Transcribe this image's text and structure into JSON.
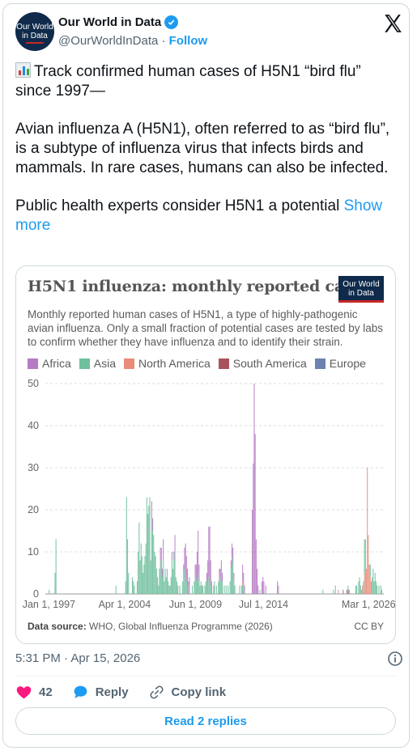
{
  "author": {
    "name": "Our World in Data",
    "handle": "@OurWorldInData",
    "separator": "·",
    "follow_label": "Follow",
    "avatar_line1": "Our World",
    "avatar_line2": "in Data"
  },
  "tweet": {
    "line1": "Track confirmed human cases of H5N1 “bird flu” since 1997—",
    "para2": "Avian influenza A (H5N1), often referred to as “bird flu”, is a subtype of influenza virus that infects birds and mammals. In rare cases, humans can also be infected.",
    "para3": "Public health experts consider H5N1 a potential",
    "show_more": "Show more",
    "emoji_icon": "bar-chart-emoji"
  },
  "chart_card": {
    "logo_line1": "Our World",
    "logo_line2": "in Data",
    "source_label": "Data source:",
    "source_text": "WHO, Global Influenza Programme (2026)",
    "license": "CC BY"
  },
  "chart_data": {
    "type": "bar",
    "title": "H5N1 influenza: monthly reported cases",
    "subtitle": "Monthly reported human cases of H5N1, a type of highly-pathogenic avian influenza. Only a small fraction of potential cases are tested by labs to confirm whether they have influenza and to identify their strain.",
    "stacked": true,
    "ylim": [
      0,
      50
    ],
    "yticks": [
      0,
      10,
      20,
      30,
      40,
      50
    ],
    "x_tick_labels": [
      "Jan 1, 1997",
      "Apr 1, 2004",
      "Jun 1, 2009",
      "Jul 1, 2014",
      "Mar 1, 2026"
    ],
    "grid": true,
    "legend_placement": "top",
    "series": [
      {
        "name": "Africa",
        "color": "#b67bc4"
      },
      {
        "name": "Asia",
        "color": "#6fbf9c"
      },
      {
        "name": "North America",
        "color": "#e98d7a"
      },
      {
        "name": "South America",
        "color": "#a8535b"
      },
      {
        "name": "Europe",
        "color": "#6d82b0"
      }
    ],
    "bars": [
      {
        "date": "1997-05",
        "region": "Asia",
        "value": 1
      },
      {
        "date": "1997-11",
        "region": "Asia",
        "value": 5
      },
      {
        "date": "1997-12",
        "region": "Asia",
        "value": 13
      },
      {
        "date": "2003-02",
        "region": "Asia",
        "value": 2
      },
      {
        "date": "2003-12",
        "region": "Asia",
        "value": 3
      },
      {
        "date": "2004-01",
        "region": "Asia",
        "value": 23
      },
      {
        "date": "2004-02",
        "region": "Asia",
        "value": 13
      },
      {
        "date": "2004-03",
        "region": "Asia",
        "value": 5
      },
      {
        "date": "2004-07",
        "region": "Asia",
        "value": 4
      },
      {
        "date": "2004-08",
        "region": "Asia",
        "value": 3
      },
      {
        "date": "2004-09",
        "region": "Asia",
        "value": 2
      },
      {
        "date": "2004-12",
        "region": "Asia",
        "value": 3
      },
      {
        "date": "2005-01",
        "region": "Asia",
        "value": 10
      },
      {
        "date": "2005-02",
        "region": "Asia",
        "value": 17
      },
      {
        "date": "2005-03",
        "region": "Asia",
        "value": 8
      },
      {
        "date": "2005-04",
        "region": "Asia",
        "value": 12
      },
      {
        "date": "2005-05",
        "region": "Asia",
        "value": 9
      },
      {
        "date": "2005-06",
        "region": "Asia",
        "value": 5
      },
      {
        "date": "2005-07",
        "region": "Asia",
        "value": 7
      },
      {
        "date": "2005-08",
        "region": "Asia",
        "value": 9
      },
      {
        "date": "2005-09",
        "region": "Asia",
        "value": 12
      },
      {
        "date": "2005-10",
        "region": "Asia",
        "value": 23
      },
      {
        "date": "2005-11",
        "region": "Asia",
        "value": 19
      },
      {
        "date": "2005-12",
        "region": "Asia",
        "value": 21
      },
      {
        "date": "2006-01",
        "region": "Asia",
        "value": 23
      },
      {
        "date": "2006-02",
        "region": "Asia",
        "value": 8
      },
      {
        "date": "2006-03",
        "region": "Asia",
        "value": 18
      },
      {
        "date": "2006-03",
        "region": "Africa",
        "value": 4
      },
      {
        "date": "2006-04",
        "region": "Asia",
        "value": 15
      },
      {
        "date": "2006-04",
        "region": "Africa",
        "value": 3
      },
      {
        "date": "2006-05",
        "region": "Asia",
        "value": 14
      },
      {
        "date": "2006-06",
        "region": "Asia",
        "value": 10
      },
      {
        "date": "2006-07",
        "region": "Asia",
        "value": 9
      },
      {
        "date": "2006-08",
        "region": "Asia",
        "value": 6
      },
      {
        "date": "2006-09",
        "region": "Asia",
        "value": 4
      },
      {
        "date": "2006-10",
        "region": "Asia",
        "value": 2
      },
      {
        "date": "2006-11",
        "region": "Asia",
        "value": 6
      },
      {
        "date": "2006-12",
        "region": "Asia",
        "value": 8
      },
      {
        "date": "2006-12",
        "region": "Africa",
        "value": 3
      },
      {
        "date": "2007-01",
        "region": "Asia",
        "value": 5
      },
      {
        "date": "2007-01",
        "region": "Africa",
        "value": 6
      },
      {
        "date": "2007-02",
        "region": "Asia",
        "value": 4
      },
      {
        "date": "2007-02",
        "region": "Africa",
        "value": 2
      },
      {
        "date": "2007-03",
        "region": "Asia",
        "value": 8
      },
      {
        "date": "2007-03",
        "region": "Africa",
        "value": 5
      },
      {
        "date": "2007-04",
        "region": "Asia",
        "value": 3
      },
      {
        "date": "2007-05",
        "region": "Asia",
        "value": 6
      },
      {
        "date": "2007-06",
        "region": "Asia",
        "value": 4
      },
      {
        "date": "2007-07",
        "region": "Asia",
        "value": 6
      },
      {
        "date": "2007-08",
        "region": "Asia",
        "value": 3
      },
      {
        "date": "2007-09",
        "region": "Asia",
        "value": 2
      },
      {
        "date": "2007-10",
        "region": "Asia",
        "value": 2
      },
      {
        "date": "2007-11",
        "region": "Asia",
        "value": 4
      },
      {
        "date": "2007-12",
        "region": "Asia",
        "value": 8
      },
      {
        "date": "2007-12",
        "region": "Africa",
        "value": 2
      },
      {
        "date": "2008-01",
        "region": "Asia",
        "value": 6
      },
      {
        "date": "2008-02",
        "region": "Asia",
        "value": 8
      },
      {
        "date": "2008-02",
        "region": "Africa",
        "value": 2
      },
      {
        "date": "2008-03",
        "region": "Asia",
        "value": 10
      },
      {
        "date": "2008-03",
        "region": "Africa",
        "value": 4
      },
      {
        "date": "2008-04",
        "region": "Asia",
        "value": 4
      },
      {
        "date": "2008-05",
        "region": "Asia",
        "value": 3
      },
      {
        "date": "2008-06",
        "region": "Asia",
        "value": 2
      },
      {
        "date": "2008-08",
        "region": "Asia",
        "value": 2
      },
      {
        "date": "2008-11",
        "region": "Asia",
        "value": 3
      },
      {
        "date": "2008-12",
        "region": "Asia",
        "value": 5
      },
      {
        "date": "2008-12",
        "region": "Africa",
        "value": 2
      },
      {
        "date": "2009-01",
        "region": "Asia",
        "value": 6
      },
      {
        "date": "2009-01",
        "region": "Africa",
        "value": 5
      },
      {
        "date": "2009-02",
        "region": "Asia",
        "value": 4
      },
      {
        "date": "2009-02",
        "region": "Africa",
        "value": 8
      },
      {
        "date": "2009-03",
        "region": "Asia",
        "value": 3
      },
      {
        "date": "2009-03",
        "region": "Africa",
        "value": 6
      },
      {
        "date": "2009-04",
        "region": "Asia",
        "value": 2
      },
      {
        "date": "2009-04",
        "region": "Africa",
        "value": 4
      },
      {
        "date": "2009-05",
        "region": "Africa",
        "value": 3
      },
      {
        "date": "2009-06",
        "region": "Asia",
        "value": 2
      },
      {
        "date": "2009-06",
        "region": "Africa",
        "value": 2
      },
      {
        "date": "2009-09",
        "region": "Asia",
        "value": 2
      },
      {
        "date": "2009-11",
        "region": "Asia",
        "value": 3
      },
      {
        "date": "2009-12",
        "region": "Asia",
        "value": 4
      },
      {
        "date": "2009-12",
        "region": "Africa",
        "value": 3
      },
      {
        "date": "2010-01",
        "region": "Asia",
        "value": 3
      },
      {
        "date": "2010-01",
        "region": "Africa",
        "value": 4
      },
      {
        "date": "2010-02",
        "region": "Asia",
        "value": 4
      },
      {
        "date": "2010-02",
        "region": "Africa",
        "value": 6
      },
      {
        "date": "2010-03",
        "region": "Asia",
        "value": 5
      },
      {
        "date": "2010-03",
        "region": "Africa",
        "value": 10
      },
      {
        "date": "2010-04",
        "region": "Asia",
        "value": 3
      },
      {
        "date": "2010-04",
        "region": "Africa",
        "value": 4
      },
      {
        "date": "2010-05",
        "region": "Asia",
        "value": 2
      },
      {
        "date": "2010-06",
        "region": "Asia",
        "value": 3
      },
      {
        "date": "2010-07",
        "region": "Asia",
        "value": 2
      },
      {
        "date": "2010-08",
        "region": "Asia",
        "value": 2
      },
      {
        "date": "2010-10",
        "region": "Asia",
        "value": 2
      },
      {
        "date": "2010-11",
        "region": "Asia",
        "value": 3
      },
      {
        "date": "2010-12",
        "region": "Asia",
        "value": 3
      },
      {
        "date": "2010-12",
        "region": "Africa",
        "value": 2
      },
      {
        "date": "2011-01",
        "region": "Asia",
        "value": 3
      },
      {
        "date": "2011-01",
        "region": "Africa",
        "value": 5
      },
      {
        "date": "2011-02",
        "region": "Asia",
        "value": 4
      },
      {
        "date": "2011-02",
        "region": "Africa",
        "value": 12
      },
      {
        "date": "2011-03",
        "region": "Asia",
        "value": 3
      },
      {
        "date": "2011-03",
        "region": "Africa",
        "value": 13
      },
      {
        "date": "2011-04",
        "region": "Asia",
        "value": 2
      },
      {
        "date": "2011-04",
        "region": "Africa",
        "value": 6
      },
      {
        "date": "2011-05",
        "region": "Africa",
        "value": 3
      },
      {
        "date": "2011-07",
        "region": "Asia",
        "value": 2
      },
      {
        "date": "2011-08",
        "region": "Asia",
        "value": 3
      },
      {
        "date": "2011-10",
        "region": "Asia",
        "value": 2
      },
      {
        "date": "2011-12",
        "region": "Asia",
        "value": 3
      },
      {
        "date": "2012-01",
        "region": "Asia",
        "value": 4
      },
      {
        "date": "2012-01",
        "region": "Africa",
        "value": 2
      },
      {
        "date": "2012-02",
        "region": "Asia",
        "value": 3
      },
      {
        "date": "2012-02",
        "region": "Africa",
        "value": 3
      },
      {
        "date": "2012-03",
        "region": "Asia",
        "value": 5
      },
      {
        "date": "2012-03",
        "region": "Africa",
        "value": 3
      },
      {
        "date": "2012-04",
        "region": "Asia",
        "value": 3
      },
      {
        "date": "2012-04",
        "region": "Africa",
        "value": 2
      },
      {
        "date": "2012-06",
        "region": "Asia",
        "value": 2
      },
      {
        "date": "2012-08",
        "region": "Asia",
        "value": 2
      },
      {
        "date": "2012-10",
        "region": "Asia",
        "value": 2
      },
      {
        "date": "2012-12",
        "region": "Asia",
        "value": 3
      },
      {
        "date": "2013-01",
        "region": "Asia",
        "value": 6
      },
      {
        "date": "2013-01",
        "region": "Africa",
        "value": 2
      },
      {
        "date": "2013-02",
        "region": "Asia",
        "value": 9
      },
      {
        "date": "2013-02",
        "region": "Africa",
        "value": 3
      },
      {
        "date": "2013-03",
        "region": "Asia",
        "value": 7
      },
      {
        "date": "2013-03",
        "region": "Africa",
        "value": 4
      },
      {
        "date": "2013-04",
        "region": "Asia",
        "value": 3
      },
      {
        "date": "2013-04",
        "region": "Africa",
        "value": 2
      },
      {
        "date": "2013-05",
        "region": "Asia",
        "value": 2
      },
      {
        "date": "2013-10",
        "region": "Asia",
        "value": 2
      },
      {
        "date": "2013-12",
        "region": "Asia",
        "value": 2
      },
      {
        "date": "2014-01",
        "region": "Asia",
        "value": 2
      },
      {
        "date": "2014-01",
        "region": "North America",
        "value": 1
      },
      {
        "date": "2014-01",
        "region": "Africa",
        "value": 4
      },
      {
        "date": "2014-02",
        "region": "Asia",
        "value": 2
      },
      {
        "date": "2014-02",
        "region": "Africa",
        "value": 3
      },
      {
        "date": "2014-03",
        "region": "Africa",
        "value": 2
      },
      {
        "date": "2014-11",
        "region": "Africa",
        "value": 20
      },
      {
        "date": "2014-12",
        "region": "Africa",
        "value": 31
      },
      {
        "date": "2015-01",
        "region": "Africa",
        "value": 50
      },
      {
        "date": "2015-02",
        "region": "Africa",
        "value": 38
      },
      {
        "date": "2015-03",
        "region": "Africa",
        "value": 13
      },
      {
        "date": "2015-04",
        "region": "Africa",
        "value": 6
      },
      {
        "date": "2015-05",
        "region": "Africa",
        "value": 2
      },
      {
        "date": "2015-07",
        "region": "Asia",
        "value": 1
      },
      {
        "date": "2015-09",
        "region": "Africa",
        "value": 3
      },
      {
        "date": "2015-10",
        "region": "Africa",
        "value": 4
      },
      {
        "date": "2015-11",
        "region": "Africa",
        "value": 3
      },
      {
        "date": "2016-01",
        "region": "Africa",
        "value": 2
      },
      {
        "date": "2017-01",
        "region": "Africa",
        "value": 3
      },
      {
        "date": "2017-02",
        "region": "Africa",
        "value": 2
      },
      {
        "date": "2020-12",
        "region": "Asia",
        "value": 1
      },
      {
        "date": "2021-11",
        "region": "Asia",
        "value": 1
      },
      {
        "date": "2022-01",
        "region": "Asia",
        "value": 2
      },
      {
        "date": "2022-04",
        "region": "North America",
        "value": 1
      },
      {
        "date": "2022-09",
        "region": "Europe",
        "value": 1
      },
      {
        "date": "2023-01",
        "region": "South America",
        "value": 1
      },
      {
        "date": "2023-02",
        "region": "Asia",
        "value": 2
      },
      {
        "date": "2023-03",
        "region": "South America",
        "value": 1
      },
      {
        "date": "2023-10",
        "region": "Asia",
        "value": 2
      },
      {
        "date": "2023-11",
        "region": "Asia",
        "value": 2
      },
      {
        "date": "2024-01",
        "region": "Asia",
        "value": 3
      },
      {
        "date": "2024-02",
        "region": "Asia",
        "value": 4
      },
      {
        "date": "2024-03",
        "region": "Asia",
        "value": 2
      },
      {
        "date": "2024-04",
        "region": "North America",
        "value": 1
      },
      {
        "date": "2024-05",
        "region": "North America",
        "value": 2
      },
      {
        "date": "2024-06",
        "region": "Asia",
        "value": 3
      },
      {
        "date": "2024-07",
        "region": "North America",
        "value": 5
      },
      {
        "date": "2024-07",
        "region": "Asia",
        "value": 8
      },
      {
        "date": "2024-08",
        "region": "Asia",
        "value": 13
      },
      {
        "date": "2024-09",
        "region": "North America",
        "value": 6
      },
      {
        "date": "2024-10",
        "region": "North America",
        "value": 30
      },
      {
        "date": "2024-11",
        "region": "North America",
        "value": 14
      },
      {
        "date": "2024-12",
        "region": "North America",
        "value": 7
      },
      {
        "date": "2025-01",
        "region": "North America",
        "value": 4
      },
      {
        "date": "2025-01",
        "region": "Asia",
        "value": 3
      },
      {
        "date": "2025-02",
        "region": "North America",
        "value": 3
      },
      {
        "date": "2025-03",
        "region": "Asia",
        "value": 4
      },
      {
        "date": "2025-04",
        "region": "Asia",
        "value": 6
      },
      {
        "date": "2025-05",
        "region": "Asia",
        "value": 3
      },
      {
        "date": "2025-06",
        "region": "Asia",
        "value": 5
      },
      {
        "date": "2025-07",
        "region": "Asia",
        "value": 3
      },
      {
        "date": "2025-08",
        "region": "Asia",
        "value": 2
      },
      {
        "date": "2025-10",
        "region": "Asia",
        "value": 2
      },
      {
        "date": "2025-12",
        "region": "Asia",
        "value": 2
      },
      {
        "date": "2026-01",
        "region": "Asia",
        "value": 1
      }
    ]
  },
  "footer": {
    "timestamp": "5:31 PM · Apr 15, 2026",
    "like_count": "42",
    "reply_label": "Reply",
    "copy_link_label": "Copy link",
    "read_replies_label": "Read 2 replies"
  }
}
